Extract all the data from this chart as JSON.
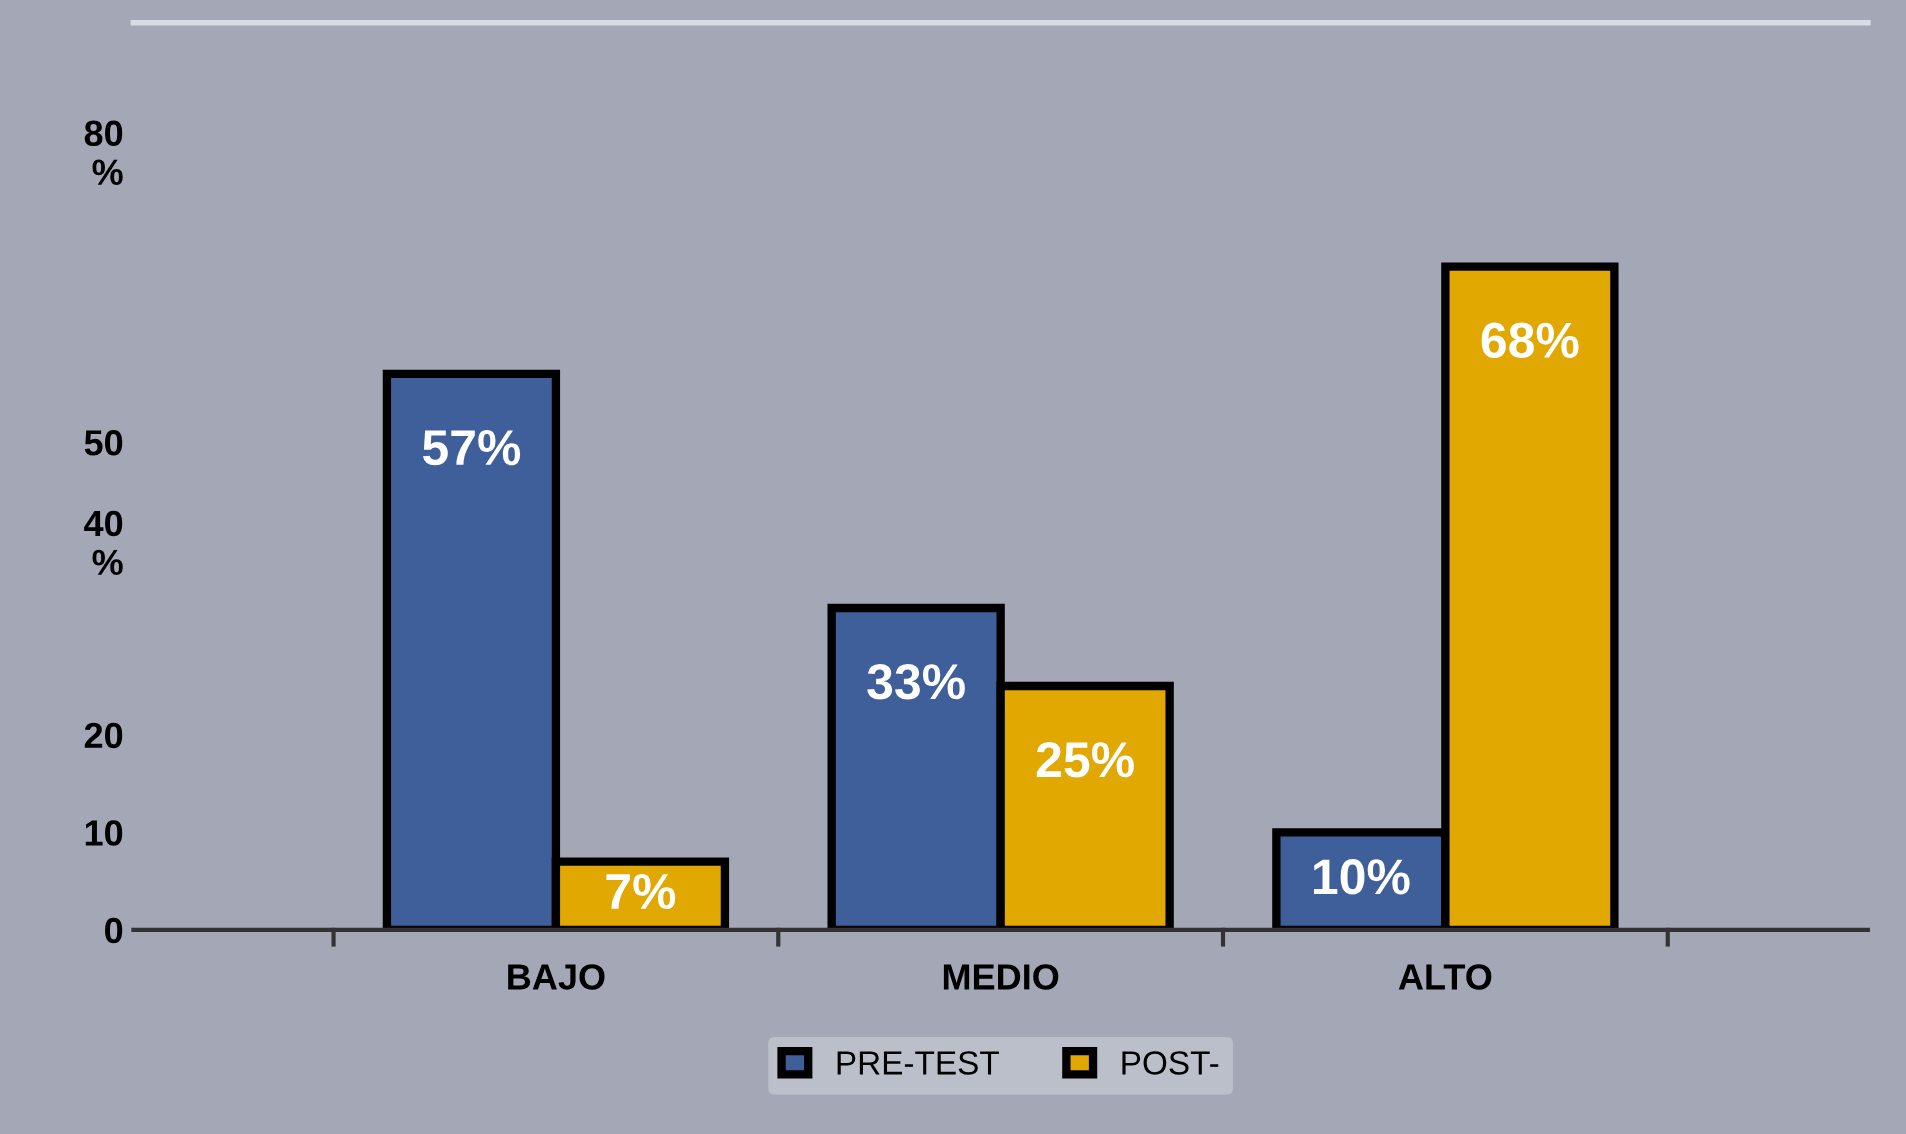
{
  "chart_data": {
    "type": "bar",
    "categories": [
      "BAJO",
      "MEDIO",
      "ALTO"
    ],
    "series": [
      {
        "name": "PRE-TEST",
        "color": "#3f5f9a",
        "values": [
          57,
          33,
          10
        ],
        "value_labels": [
          "57%",
          "33%",
          "10%"
        ]
      },
      {
        "name": "POST-",
        "color": "#e0a800",
        "values": [
          7,
          25,
          68
        ],
        "value_labels": [
          "7%",
          "25%",
          "68%"
        ]
      }
    ],
    "ylim": [
      0,
      93
    ],
    "yticks": [
      0,
      10,
      20,
      {
        "value": 40,
        "label": "40\n%"
      },
      50,
      {
        "value": 80,
        "label": "80\n%"
      }
    ],
    "grid": false,
    "legend": "bottom"
  }
}
